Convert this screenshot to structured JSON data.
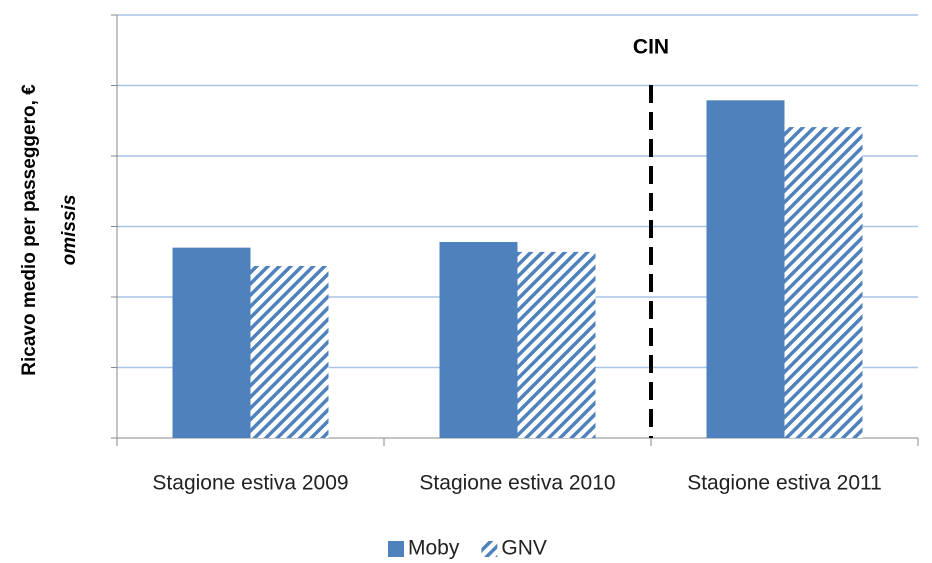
{
  "chart_data": {
    "type": "bar",
    "y_title": "Ricavo medio per passeggero, €",
    "y_subtitle": "omissis",
    "annotation": "CIN",
    "categories": [
      "Stagione estiva 2009",
      "Stagione estiva 2010",
      "Stagione estiva 2011"
    ],
    "series": [
      {
        "name": "Moby",
        "color": "#4f81bd",
        "fill": "solid",
        "values": [
          2.7,
          2.78,
          4.79
        ]
      },
      {
        "name": "GNV",
        "color": "#4f81bd",
        "fill": "hatch",
        "values": [
          2.44,
          2.64,
          4.41
        ]
      }
    ],
    "ylim": [
      0,
      6
    ],
    "yticks": [
      0,
      1,
      2,
      3,
      4,
      5,
      6
    ],
    "grid": true,
    "legend": "bottom"
  }
}
